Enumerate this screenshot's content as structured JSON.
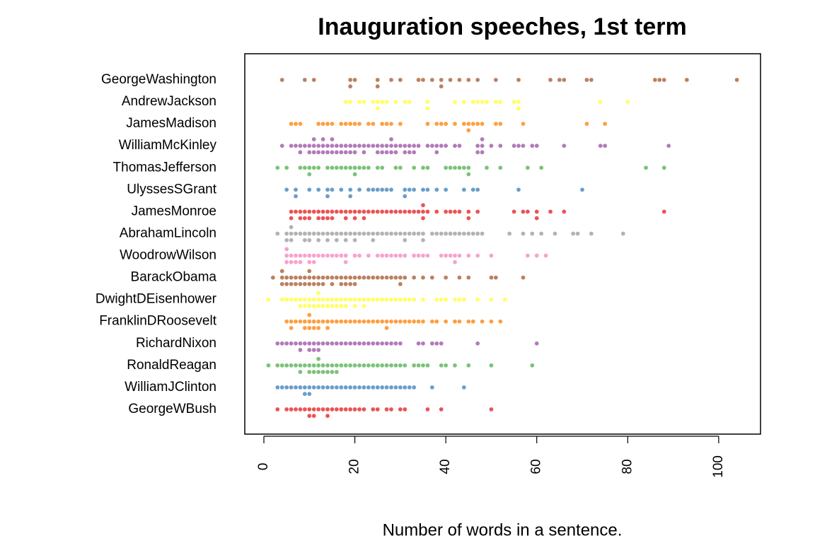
{
  "chart_data": {
    "type": "beeswarm",
    "title": "Inauguration speeches, 1st term",
    "x_label": "Number of words in a sentence.",
    "xlim": [
      -4.2,
      109.2
    ],
    "xticks": [
      0,
      20,
      40,
      60,
      80,
      100
    ],
    "series": [
      {
        "name": "GeorgeWashington",
        "color": "#A65628",
        "values": [
          4,
          9,
          11,
          19,
          19,
          20,
          25,
          25,
          28,
          30,
          34,
          35,
          37,
          39,
          39,
          41,
          43,
          45,
          47,
          51,
          56,
          63,
          65,
          66,
          71,
          72,
          86,
          87,
          88,
          93,
          104
        ]
      },
      {
        "name": "AndrewJackson",
        "color": "#FFFF33",
        "values": [
          18,
          19,
          21,
          22,
          24,
          25,
          25,
          26,
          27,
          29,
          31,
          32,
          36,
          36,
          42,
          44,
          46,
          47,
          48,
          49,
          51,
          52,
          55,
          56,
          56,
          74,
          80
        ]
      },
      {
        "name": "JamesMadison",
        "color": "#FF7F00",
        "values": [
          6,
          7,
          8,
          12,
          13,
          14,
          15,
          17,
          18,
          19,
          20,
          21,
          23,
          24,
          26,
          27,
          28,
          30,
          36,
          38,
          39,
          40,
          42,
          44,
          45,
          45,
          46,
          47,
          48,
          51,
          52,
          57,
          71,
          75
        ]
      },
      {
        "name": "WilliamMcKinley",
        "color": "#984EA3",
        "values": [
          4,
          6,
          7,
          8,
          8,
          9,
          10,
          10,
          11,
          11,
          11,
          12,
          12,
          13,
          13,
          13,
          14,
          14,
          15,
          15,
          15,
          16,
          16,
          17,
          17,
          18,
          18,
          19,
          19,
          20,
          20,
          21,
          22,
          22,
          23,
          24,
          25,
          25,
          26,
          26,
          27,
          27,
          28,
          28,
          28,
          29,
          29,
          30,
          31,
          31,
          32,
          32,
          33,
          33,
          34,
          36,
          37,
          38,
          38,
          39,
          40,
          42,
          43,
          47,
          47,
          48,
          48,
          48,
          50,
          52,
          55,
          56,
          57,
          59,
          60,
          66,
          74,
          75,
          89
        ]
      },
      {
        "name": "ThomasJefferson",
        "color": "#4DAF4A",
        "values": [
          3,
          5,
          8,
          9,
          10,
          10,
          11,
          12,
          14,
          15,
          16,
          17,
          18,
          19,
          20,
          20,
          21,
          22,
          23,
          25,
          26,
          29,
          30,
          33,
          35,
          36,
          40,
          41,
          42,
          43,
          44,
          45,
          45,
          49,
          52,
          58,
          61,
          84,
          88
        ]
      },
      {
        "name": "UlyssesSGrant",
        "color": "#377EB8",
        "values": [
          5,
          7,
          7,
          10,
          12,
          14,
          14,
          15,
          17,
          19,
          19,
          21,
          23,
          24,
          25,
          26,
          27,
          28,
          31,
          31,
          32,
          33,
          35,
          36,
          38,
          40,
          44,
          46,
          47,
          56,
          70
        ]
      },
      {
        "name": "JamesMonroe",
        "color": "#E41A1C",
        "values": [
          6,
          6,
          7,
          8,
          8,
          9,
          9,
          10,
          10,
          11,
          12,
          12,
          13,
          13,
          14,
          14,
          15,
          15,
          16,
          17,
          18,
          18,
          19,
          20,
          20,
          21,
          22,
          22,
          23,
          24,
          25,
          26,
          27,
          28,
          29,
          30,
          31,
          32,
          33,
          34,
          35,
          35,
          35,
          36,
          38,
          40,
          41,
          42,
          43,
          45,
          45,
          47,
          55,
          57,
          58,
          60,
          60,
          63,
          66,
          88
        ]
      },
      {
        "name": "AbrahamLincoln",
        "color": "#999999",
        "values": [
          3,
          5,
          5,
          6,
          6,
          6,
          7,
          8,
          9,
          9,
          10,
          10,
          11,
          12,
          12,
          13,
          14,
          14,
          15,
          16,
          16,
          17,
          18,
          18,
          19,
          20,
          20,
          21,
          22,
          23,
          24,
          24,
          25,
          26,
          27,
          28,
          29,
          30,
          31,
          31,
          32,
          33,
          34,
          35,
          35,
          37,
          38,
          39,
          40,
          41,
          42,
          43,
          44,
          45,
          46,
          47,
          48,
          54,
          57,
          59,
          61,
          64,
          68,
          69,
          72,
          79
        ]
      },
      {
        "name": "WoodrowWilson",
        "color": "#F781BF",
        "values": [
          5,
          5,
          5,
          6,
          6,
          7,
          7,
          8,
          8,
          9,
          10,
          10,
          11,
          11,
          12,
          13,
          14,
          15,
          16,
          17,
          18,
          18,
          20,
          21,
          23,
          25,
          26,
          27,
          28,
          29,
          30,
          31,
          33,
          34,
          35,
          36,
          39,
          40,
          41,
          42,
          42,
          43,
          45,
          47,
          50,
          58,
          60,
          62
        ]
      },
      {
        "name": "BarackObama",
        "color": "#A65628",
        "values": [
          2,
          4,
          4,
          4,
          5,
          5,
          6,
          6,
          7,
          7,
          8,
          8,
          9,
          9,
          10,
          10,
          10,
          11,
          11,
          12,
          12,
          13,
          13,
          14,
          15,
          15,
          16,
          17,
          17,
          18,
          18,
          19,
          19,
          20,
          20,
          21,
          22,
          23,
          24,
          25,
          26,
          27,
          28,
          29,
          30,
          30,
          31,
          33,
          35,
          37,
          40,
          43,
          45,
          50,
          51,
          57
        ]
      },
      {
        "name": "DwightDEisenhower",
        "color": "#FFFF33",
        "values": [
          1,
          4,
          5,
          6,
          7,
          8,
          8,
          9,
          9,
          10,
          10,
          11,
          11,
          12,
          12,
          12,
          13,
          13,
          14,
          14,
          15,
          15,
          16,
          16,
          17,
          17,
          18,
          18,
          19,
          20,
          20,
          21,
          22,
          22,
          23,
          24,
          25,
          26,
          27,
          28,
          29,
          30,
          31,
          32,
          33,
          35,
          38,
          39,
          40,
          42,
          43,
          44,
          47,
          50,
          53
        ]
      },
      {
        "name": "FranklinDRoosevelt",
        "color": "#FF7F00",
        "values": [
          5,
          6,
          6,
          7,
          8,
          9,
          9,
          10,
          10,
          10,
          11,
          11,
          12,
          12,
          13,
          14,
          14,
          15,
          16,
          17,
          18,
          19,
          20,
          21,
          22,
          23,
          24,
          25,
          26,
          27,
          27,
          28,
          29,
          30,
          31,
          32,
          33,
          34,
          35,
          37,
          38,
          40,
          42,
          43,
          45,
          46,
          48,
          50,
          52
        ]
      },
      {
        "name": "RichardNixon",
        "color": "#984EA3",
        "values": [
          3,
          4,
          5,
          6,
          7,
          8,
          8,
          9,
          10,
          10,
          11,
          11,
          12,
          12,
          13,
          14,
          15,
          16,
          17,
          18,
          19,
          20,
          21,
          22,
          23,
          24,
          25,
          26,
          27,
          28,
          29,
          30,
          34,
          35,
          37,
          38,
          39,
          47,
          60
        ]
      },
      {
        "name": "RonaldReagan",
        "color": "#4DAF4A",
        "values": [
          1,
          3,
          4,
          5,
          6,
          7,
          8,
          8,
          9,
          10,
          10,
          11,
          11,
          12,
          12,
          12,
          13,
          13,
          14,
          14,
          15,
          15,
          16,
          16,
          17,
          18,
          19,
          20,
          21,
          22,
          23,
          24,
          25,
          26,
          27,
          28,
          29,
          30,
          31,
          33,
          34,
          35,
          36,
          39,
          40,
          42,
          45,
          50,
          59
        ]
      },
      {
        "name": "WilliamJClinton",
        "color": "#377EB8",
        "values": [
          3,
          4,
          5,
          6,
          7,
          8,
          9,
          9,
          10,
          10,
          11,
          12,
          13,
          14,
          15,
          16,
          17,
          18,
          19,
          20,
          21,
          22,
          23,
          24,
          25,
          26,
          27,
          28,
          29,
          30,
          31,
          32,
          33,
          37,
          44
        ]
      },
      {
        "name": "GeorgeWBush",
        "color": "#E41A1C",
        "values": [
          3,
          5,
          6,
          7,
          8,
          9,
          10,
          10,
          11,
          11,
          12,
          13,
          14,
          14,
          15,
          16,
          17,
          18,
          19,
          20,
          21,
          22,
          24,
          25,
          27,
          28,
          30,
          31,
          36,
          39,
          50
        ]
      }
    ]
  }
}
